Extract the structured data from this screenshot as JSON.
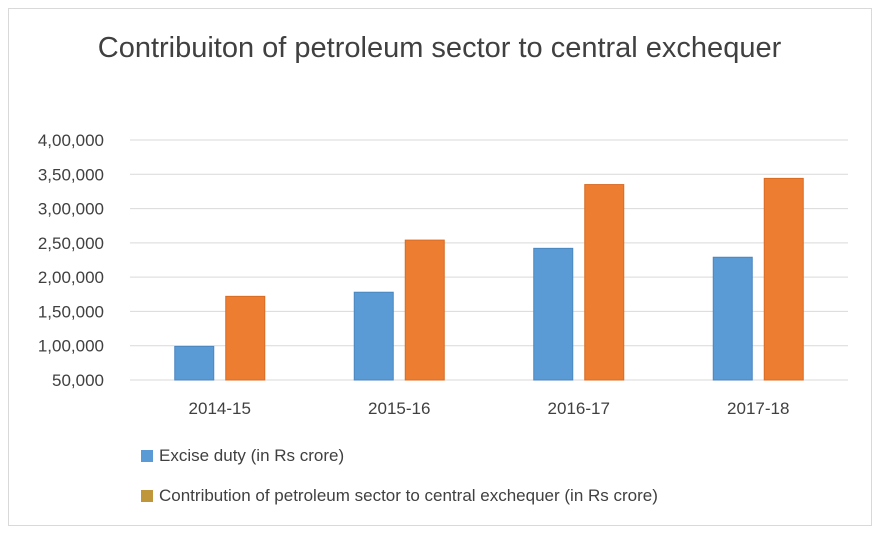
{
  "chart_data": {
    "type": "bar",
    "title": "Contribuiton of petroleum sector to central exchequer",
    "categories": [
      "2014-15",
      "2015-16",
      "2016-17",
      "2017-18"
    ],
    "series": [
      {
        "name": "Excise duty (in Rs crore)",
        "values": [
          99000,
          178000,
          242000,
          229000
        ],
        "color": "#5b9bd5"
      },
      {
        "name": "Contribution of petroleum sector to central exchequer (in Rs crore)",
        "values": [
          172000,
          254000,
          335000,
          344000
        ],
        "color": "#ed7d31"
      }
    ],
    "ylim": [
      50000,
      400000
    ],
    "yticks": [
      50000,
      100000,
      150000,
      200000,
      250000,
      300000,
      350000,
      400000
    ],
    "ytick_labels": [
      "50,000",
      "1,00,000",
      "1,50,000",
      "2,00,000",
      "2,50,000",
      "3,00,000",
      "3,50,000",
      "4,00,000"
    ],
    "legend_position": "bottom-left",
    "grid": true,
    "legend_swatch_colors": [
      "#5b9bd5",
      "#c0963a"
    ],
    "gridline_color": "#d9d9d9"
  }
}
